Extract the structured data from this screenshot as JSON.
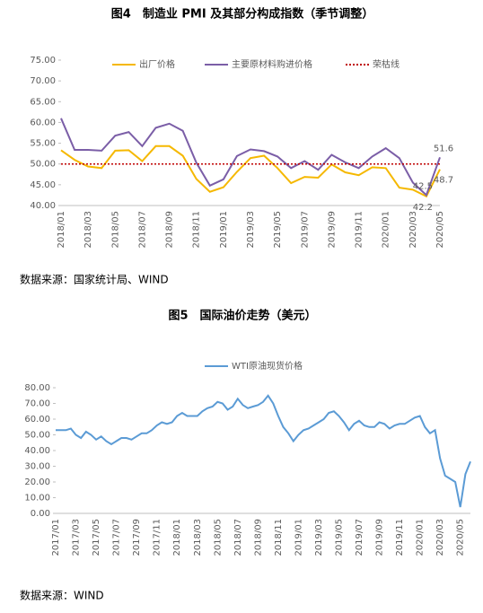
{
  "figure1_title": "图4　制造业 PMI 及其部分构成指数（季节调整）",
  "source1": "数据来源：国家统计局、WIND",
  "figure2_title": "图5　国际油价走势（美元）",
  "source2": "数据来源：WIND",
  "chart_data": [
    {
      "type": "line",
      "categories": [
        "2018/01",
        null,
        "2018/03",
        null,
        "2018/05",
        null,
        "2018/07",
        null,
        "2018/09",
        null,
        "2018/11",
        null,
        "2019/01",
        null,
        "2019/03",
        null,
        "2019/05",
        null,
        "2019/07",
        null,
        "2019/09",
        null,
        "2019/11",
        null,
        "2020/01",
        null,
        "2020/03",
        null,
        "2020/05"
      ],
      "ylim": [
        40,
        75
      ],
      "yticks": [
        {
          "value": 40,
          "label": "40.00"
        },
        {
          "value": 45,
          "label": "45.00"
        },
        {
          "value": 50,
          "label": "50.00"
        },
        {
          "value": 55,
          "label": "55.00"
        },
        {
          "value": 60,
          "label": "60.00"
        },
        {
          "value": 65,
          "label": "65.00"
        },
        {
          "value": 70,
          "label": "70.00"
        },
        {
          "value": 75,
          "label": "75.00"
        }
      ],
      "legend": "top",
      "series": [
        {
          "name": "出厂价格",
          "color": "#f5b800",
          "line_style": "solid",
          "values": [
            53.3,
            51.0,
            49.4,
            49.0,
            53.2,
            53.3,
            50.7,
            54.3,
            54.3,
            52.0,
            46.4,
            43.3,
            44.4,
            48.1,
            51.4,
            52.0,
            49.0,
            45.4,
            46.9,
            46.7,
            49.9,
            48.0,
            47.3,
            49.2,
            49.0,
            44.3,
            43.8,
            42.2,
            48.7
          ],
          "value_labels": [
            null,
            null,
            null,
            null,
            null,
            null,
            null,
            null,
            null,
            null,
            null,
            null,
            null,
            null,
            null,
            null,
            null,
            null,
            null,
            null,
            null,
            null,
            null,
            null,
            null,
            null,
            null,
            "42.2",
            "48.7"
          ]
        },
        {
          "name": "主要原材料购进价格",
          "color": "#7b5ea7",
          "line_style": "solid",
          "values": [
            61.0,
            53.4,
            53.4,
            53.2,
            56.8,
            57.7,
            54.3,
            58.7,
            59.7,
            58.0,
            50.3,
            44.8,
            46.3,
            51.9,
            53.5,
            53.1,
            51.8,
            49.0,
            50.7,
            48.6,
            52.2,
            50.4,
            49.0,
            51.8,
            53.8,
            51.4,
            45.5,
            42.5,
            51.6
          ],
          "value_labels": [
            null,
            null,
            null,
            null,
            null,
            null,
            null,
            null,
            null,
            null,
            null,
            null,
            null,
            null,
            null,
            null,
            null,
            null,
            null,
            null,
            null,
            null,
            null,
            null,
            null,
            null,
            null,
            "42.5",
            "51.6"
          ]
        },
        {
          "name": "荣枯线",
          "color": "#c00000",
          "line_style": "dotted",
          "values": [
            50,
            50,
            50,
            50,
            50,
            50,
            50,
            50,
            50,
            50,
            50,
            50,
            50,
            50,
            50,
            50,
            50,
            50,
            50,
            50,
            50,
            50,
            50,
            50,
            50,
            50,
            50,
            50,
            50
          ]
        }
      ]
    },
    {
      "type": "line",
      "categories": [
        "2017/01",
        null,
        null,
        null,
        "2017/03",
        null,
        null,
        null,
        "2017/05",
        null,
        null,
        null,
        "2017/07",
        null,
        null,
        null,
        "2017/09",
        null,
        null,
        null,
        "2017/11",
        null,
        null,
        null,
        "2018/01",
        null,
        null,
        null,
        "2018/03",
        null,
        null,
        null,
        "2018/05",
        null,
        null,
        null,
        "2018/07",
        null,
        null,
        null,
        "2018/09",
        null,
        null,
        null,
        "2018/11",
        null,
        null,
        null,
        "2019/01",
        null,
        null,
        null,
        "2019/03",
        null,
        null,
        null,
        "2019/05",
        null,
        null,
        null,
        "2019/07",
        null,
        null,
        null,
        "2019/09",
        null,
        null,
        null,
        "2019/11",
        null,
        null,
        null,
        "2020/01",
        null,
        null,
        null,
        "2020/03",
        null,
        null,
        null,
        "2020/05",
        null,
        null
      ],
      "ylim": [
        0,
        80
      ],
      "yticks": [
        {
          "value": 0,
          "label": "0.00"
        },
        {
          "value": 10,
          "label": "10.00"
        },
        {
          "value": 20,
          "label": "20.00"
        },
        {
          "value": 30,
          "label": "30.00"
        },
        {
          "value": 40,
          "label": "40.00"
        },
        {
          "value": 50,
          "label": "50.00"
        },
        {
          "value": 60,
          "label": "60.00"
        },
        {
          "value": 70,
          "label": "70.00"
        },
        {
          "value": 80,
          "label": "80.00"
        }
      ],
      "legend": "top",
      "series": [
        {
          "name": "WTI原油现货价格",
          "color": "#5b9bd5",
          "line_style": "solid",
          "values": [
            53,
            53,
            53,
            54,
            50,
            48,
            52,
            50,
            47,
            49,
            46,
            44,
            46,
            48,
            48,
            47,
            49,
            51,
            51,
            53,
            56,
            58,
            57,
            58,
            62,
            64,
            62,
            62,
            62,
            65,
            67,
            68,
            71,
            70,
            66,
            68,
            73,
            69,
            67,
            68,
            69,
            71,
            75,
            70,
            62,
            55,
            51,
            46,
            50,
            53,
            54,
            56,
            58,
            60,
            64,
            65,
            62,
            58,
            53,
            57,
            59,
            56,
            55,
            55,
            58,
            57,
            54,
            56,
            57,
            57,
            59,
            61,
            62,
            55,
            51,
            53,
            35,
            24,
            22,
            20,
            4,
            25,
            33
          ]
        }
      ]
    }
  ]
}
